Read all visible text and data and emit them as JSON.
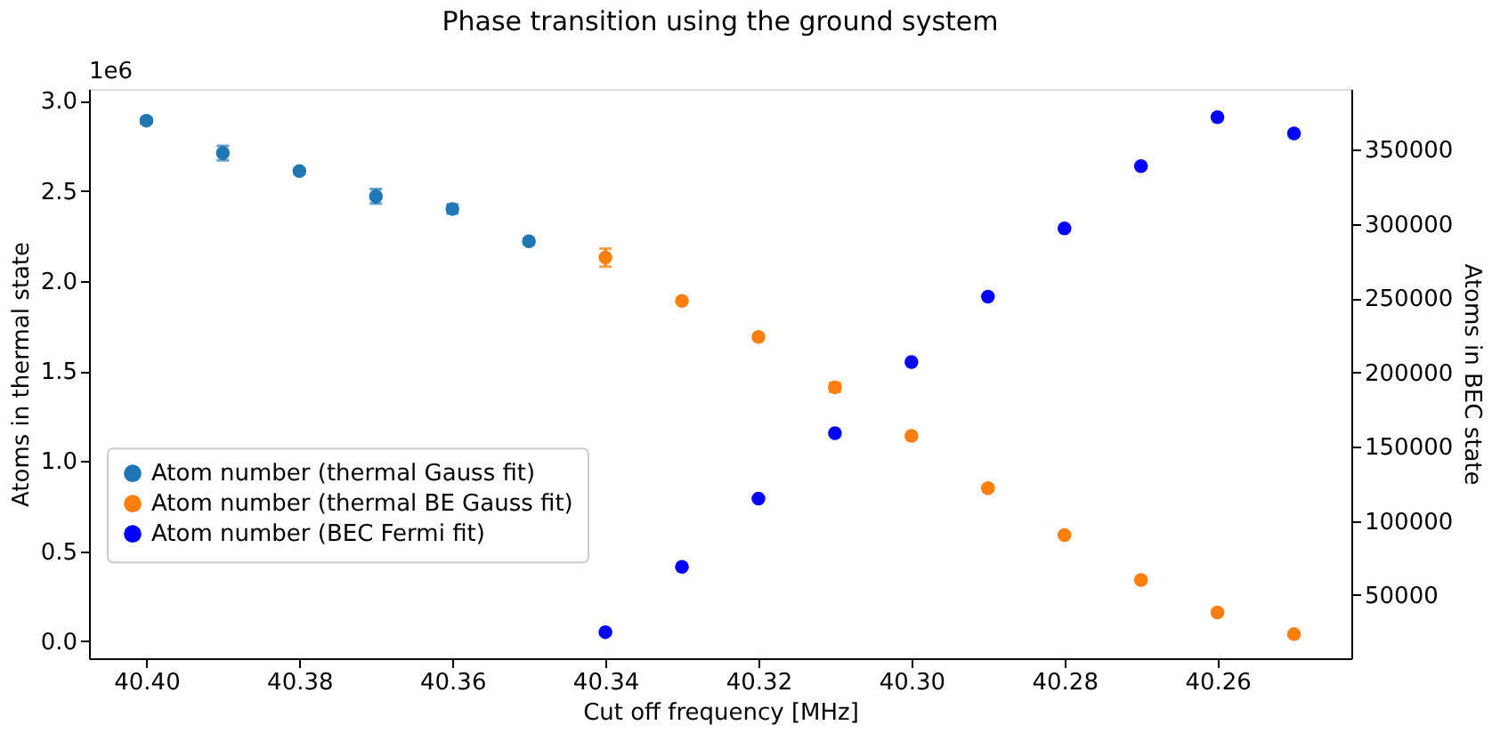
{
  "chart_data": {
    "type": "scatter",
    "title": "Phase transition using the ground system",
    "xlabel": "Cut off frequency [MHz]",
    "ylabel": "Atoms in thermal state",
    "y2label": "Atoms in BEC state",
    "annotations": [
      "1e6"
    ],
    "xlim": [
      40.4075,
      40.2425
    ],
    "xticks": [
      {
        "value": 40.4,
        "label": "40.40"
      },
      {
        "value": 40.38,
        "label": "40.38"
      },
      {
        "value": 40.36,
        "label": "40.36"
      },
      {
        "value": 40.34,
        "label": "40.34"
      },
      {
        "value": 40.32,
        "label": "40.32"
      },
      {
        "value": 40.3,
        "label": "40.30"
      },
      {
        "value": 40.28,
        "label": "40.28"
      },
      {
        "value": 40.26,
        "label": "40.26"
      }
    ],
    "ylim": [
      -0.094,
      3.066
    ],
    "yticks": [
      {
        "value": 0,
        "label": "0.0"
      },
      {
        "value": 0.5,
        "label": "0.5"
      },
      {
        "value": 1,
        "label": "1.0"
      },
      {
        "value": 1.5,
        "label": "1.5"
      },
      {
        "value": 2,
        "label": "2.0"
      },
      {
        "value": 2.5,
        "label": "2.5"
      },
      {
        "value": 3,
        "label": "3.0"
      }
    ],
    "y2lim": [
      7400,
      391000
    ],
    "y2ticks": [
      50000,
      100000,
      150000,
      200000,
      250000,
      300000,
      350000
    ],
    "grid": false,
    "legend": "center left",
    "marker": "circle",
    "series": [
      {
        "name": "Atom number (thermal Gauss fit)",
        "color": "#1f77b4",
        "x": [
          40.4,
          40.39,
          40.38,
          40.37,
          40.36,
          40.35
        ],
        "values": [
          2.89,
          2.71,
          2.61,
          2.47,
          2.4,
          2.22
        ],
        "errors": [
          0.015,
          0.04,
          0.015,
          0.04,
          0.025,
          0.015
        ]
      },
      {
        "name": "Atom number (thermal BE Gauss fit)",
        "color": "#ff7f0e",
        "x": [
          40.34,
          40.33,
          40.32,
          40.31,
          40.3,
          40.29,
          40.28,
          40.27,
          40.26,
          40.25
        ],
        "values": [
          2.13,
          1.89,
          1.69,
          1.41,
          1.14,
          0.85,
          0.59,
          0.34,
          0.16,
          0.04
        ],
        "errors": [
          0.05,
          0.01,
          0.01,
          0.025,
          0.01,
          0.01,
          0.01,
          0.01,
          0.01,
          0.01
        ]
      },
      {
        "name": "Atom number (BEC Fermi fit)",
        "color": "#0000ff",
        "axis": "y2",
        "x": [
          40.34,
          40.33,
          40.32,
          40.31,
          40.3,
          40.29,
          40.28,
          40.27,
          40.26,
          40.25
        ],
        "values": [
          25000,
          69000,
          115000,
          159000,
          207000,
          251000,
          297000,
          339000,
          372000,
          361000
        ]
      }
    ]
  }
}
